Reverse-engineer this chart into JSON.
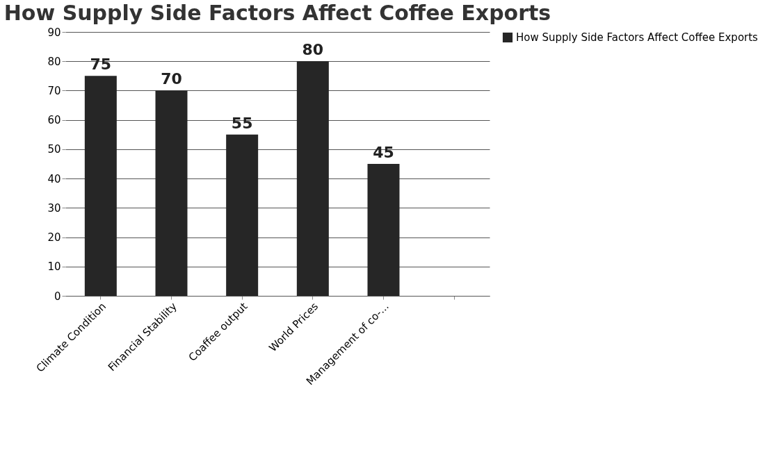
{
  "chart_data": {
    "type": "bar",
    "title": "How Supply Side Factors Affect Coffee Exports",
    "categories": [
      "Climate Condition",
      "Financial Stability",
      "Coaffee output",
      "World Prices",
      "Management of co-...",
      null
    ],
    "series": [
      {
        "name": "How Supply Side Factors Affect Coffee Exports",
        "color": "#262626",
        "values": [
          75,
          70,
          55,
          80,
          45,
          null
        ]
      }
    ],
    "ylim": [
      0,
      90
    ],
    "yticks": [
      0,
      10,
      20,
      30,
      40,
      50,
      60,
      70,
      80,
      90
    ],
    "grid": "y",
    "legend": "right",
    "data_labels": true
  }
}
